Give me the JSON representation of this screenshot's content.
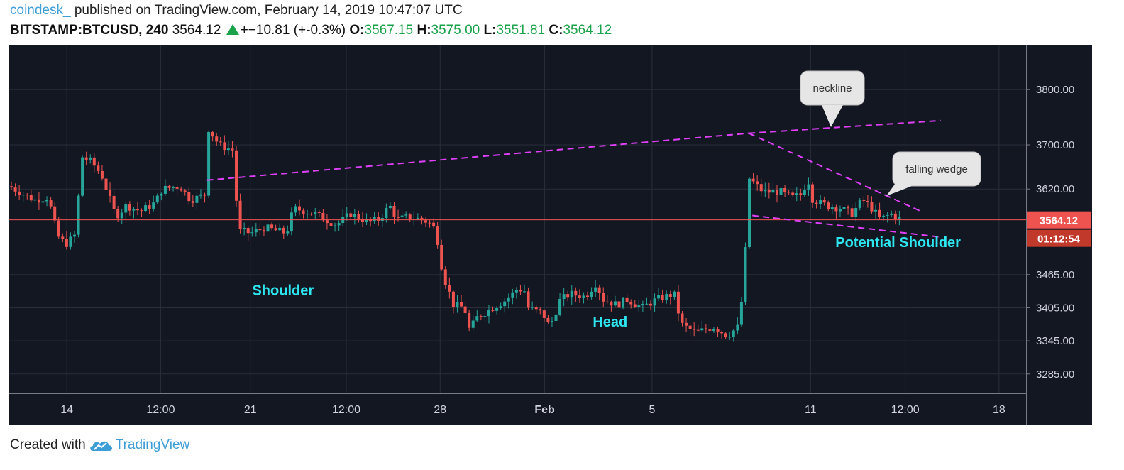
{
  "header": {
    "publisher": "coindesk_",
    "published_text": "published on TradingView.com, February 14, 2019 10:47:07 UTC",
    "symbol": "BITSTAMP:BTCUSD, 240",
    "last": "3564.12",
    "change": "+−10.81 (+-0.3%)",
    "open_label": "O:",
    "open": "3567.15",
    "high_label": "H:",
    "high": "3575.00",
    "low_label": "L:",
    "low": "3551.81",
    "close_label": "C:",
    "close": "3564.12"
  },
  "footer": {
    "created_with": "Created with",
    "brand": "TradingView"
  },
  "colors": {
    "background": "#131722",
    "up": "#26a69a",
    "down": "#ef5350",
    "grid": "#2a2e39",
    "trendline": "#e040fb",
    "annotation": "#2ee6f0",
    "price_tag": "#ef5350"
  },
  "chart_data": {
    "type": "candlestick",
    "ylim": [
      3250,
      3880
    ],
    "xlim": [
      0,
      1430
    ],
    "ytick_values": [
      3800,
      3700,
      3620,
      3465,
      3405,
      3345,
      3285
    ],
    "ytick_labels": [
      "3800.00",
      "3700.00",
      "3620.00",
      "3465.00",
      "3405.00",
      "3345.00",
      "3285.00"
    ],
    "xtick_labels": [
      "14",
      "12:00",
      "21",
      "12:00",
      "28",
      "Feb",
      "5",
      "11",
      "12:00",
      "18"
    ],
    "xtick_values": [
      81,
      213,
      339,
      474,
      606,
      753,
      904,
      1127,
      1260,
      1392
    ],
    "bold_xticks": [
      "Feb"
    ],
    "last_price_label": "3564.12",
    "countdown_label": "01:12:54",
    "last_price": 3564.12,
    "callouts": [
      {
        "text": "neckline"
      },
      {
        "text": "falling wedge"
      }
    ],
    "annotations": [
      {
        "text": "Shoulder",
        "x": 385,
        "y": 3428
      },
      {
        "text": "Head",
        "x": 845,
        "y": 3371
      },
      {
        "text": "Potential Shoulder",
        "x": 1250,
        "y": 3515
      }
    ],
    "trendlines": [
      {
        "name": "neckline",
        "points": [
          [
            278,
            3636
          ],
          [
            1040,
            3721
          ]
        ]
      },
      {
        "name": "neckline-ext",
        "points": [
          [
            1040,
            3721
          ],
          [
            1310,
            3744
          ]
        ]
      },
      {
        "name": "wedge-upper",
        "points": [
          [
            1040,
            3721
          ],
          [
            1285,
            3578
          ]
        ]
      },
      {
        "name": "wedge-lower",
        "points": [
          [
            1045,
            3572
          ],
          [
            1310,
            3533
          ]
        ]
      }
    ],
    "anchors": [
      [
        0,
        3625
      ],
      [
        35,
        3600
      ],
      [
        55,
        3605
      ],
      [
        68,
        3535
      ],
      [
        80,
        3520
      ],
      [
        95,
        3540
      ],
      [
        100,
        3680
      ],
      [
        115,
        3670
      ],
      [
        130,
        3645
      ],
      [
        150,
        3570
      ],
      [
        165,
        3590
      ],
      [
        185,
        3580
      ],
      [
        205,
        3595
      ],
      [
        215,
        3620
      ],
      [
        240,
        3625
      ],
      [
        255,
        3600
      ],
      [
        275,
        3610
      ],
      [
        280,
        3730
      ],
      [
        295,
        3700
      ],
      [
        315,
        3690
      ],
      [
        322,
        3545
      ],
      [
        340,
        3540
      ],
      [
        360,
        3550
      ],
      [
        390,
        3540
      ],
      [
        400,
        3585
      ],
      [
        430,
        3575
      ],
      [
        445,
        3565
      ],
      [
        460,
        3555
      ],
      [
        480,
        3575
      ],
      [
        505,
        3560
      ],
      [
        520,
        3565
      ],
      [
        535,
        3590
      ],
      [
        545,
        3565
      ],
      [
        565,
        3570
      ],
      [
        590,
        3560
      ],
      [
        600,
        3545
      ],
      [
        610,
        3465
      ],
      [
        625,
        3410
      ],
      [
        640,
        3405
      ],
      [
        648,
        3360
      ],
      [
        655,
        3385
      ],
      [
        680,
        3405
      ],
      [
        700,
        3420
      ],
      [
        715,
        3440
      ],
      [
        725,
        3435
      ],
      [
        730,
        3405
      ],
      [
        750,
        3395
      ],
      [
        760,
        3370
      ],
      [
        775,
        3420
      ],
      [
        790,
        3430
      ],
      [
        810,
        3425
      ],
      [
        825,
        3450
      ],
      [
        835,
        3420
      ],
      [
        855,
        3410
      ],
      [
        870,
        3420
      ],
      [
        890,
        3405
      ],
      [
        910,
        3420
      ],
      [
        935,
        3430
      ],
      [
        945,
        3375
      ],
      [
        965,
        3360
      ],
      [
        990,
        3370
      ],
      [
        1010,
        3355
      ],
      [
        1025,
        3370
      ],
      [
        1033,
        3445
      ],
      [
        1040,
        3640
      ],
      [
        1060,
        3615
      ],
      [
        1085,
        3615
      ],
      [
        1100,
        3605
      ],
      [
        1115,
        3610
      ],
      [
        1123,
        3640
      ],
      [
        1130,
        3600
      ],
      [
        1150,
        3590
      ],
      [
        1170,
        3585
      ],
      [
        1185,
        3575
      ],
      [
        1200,
        3600
      ],
      [
        1210,
        3590
      ],
      [
        1225,
        3565
      ],
      [
        1240,
        3575
      ],
      [
        1255,
        3564
      ]
    ]
  }
}
